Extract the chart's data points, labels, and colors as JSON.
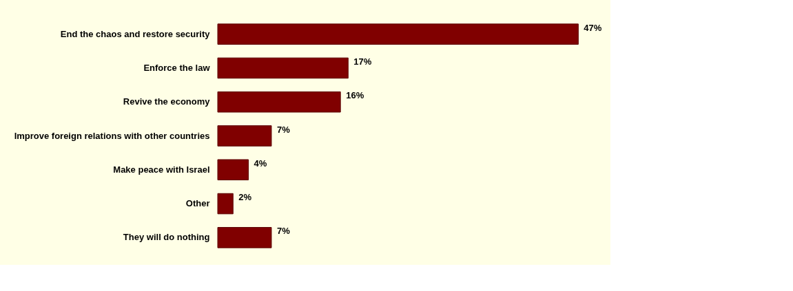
{
  "chart_data": {
    "type": "bar",
    "orientation": "horizontal",
    "categories": [
      "End the chaos and restore security",
      "Enforce the law",
      "Revive the economy",
      "Improve foreign relations with other countries",
      "Make peace with Israel",
      "Other",
      "They will do nothing"
    ],
    "values": [
      47,
      17,
      16,
      7,
      4,
      2,
      7
    ],
    "value_labels": [
      "47%",
      "17%",
      "16%",
      "7%",
      "4%",
      "2%",
      "7%"
    ],
    "color": "#800000"
  }
}
